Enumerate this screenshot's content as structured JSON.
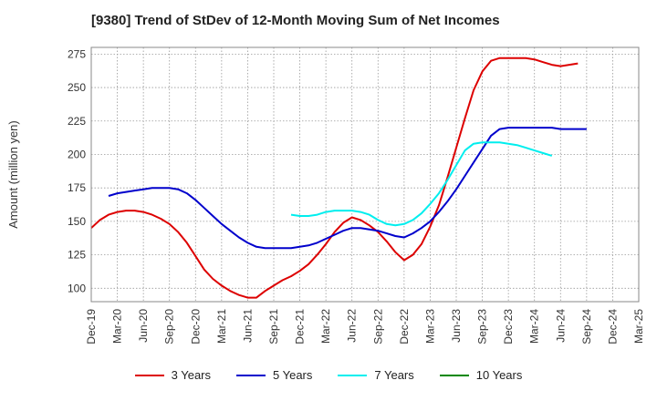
{
  "title": "[9380]  Trend of StDev of 12-Month Moving Sum of Net Incomes",
  "chart_data": {
    "type": "line",
    "title": "[9380]  Trend of StDev of 12-Month Moving Sum of Net Incomes",
    "xlabel": "",
    "ylabel": "Amount (million yen)",
    "x_tick_labels": [
      "Dec-19",
      "Mar-20",
      "Jun-20",
      "Sep-20",
      "Dec-20",
      "Mar-21",
      "Jun-21",
      "Sep-21",
      "Dec-21",
      "Mar-22",
      "Jun-22",
      "Sep-22",
      "Dec-22",
      "Mar-23",
      "Jun-23",
      "Sep-23",
      "Dec-23",
      "Mar-24",
      "Jun-24",
      "Sep-24",
      "Dec-24",
      "Mar-25"
    ],
    "y_ticks": [
      100,
      125,
      150,
      175,
      200,
      225,
      250,
      275
    ],
    "ylim": [
      90,
      280
    ],
    "grid": true,
    "legend_position": "bottom",
    "series": [
      {
        "name": "3 Years",
        "color": "#dd0000",
        "start_index": 0,
        "values": [
          145,
          151,
          155,
          157,
          158,
          158,
          157,
          155,
          152,
          148,
          142,
          134,
          124,
          114,
          107,
          102,
          98,
          95,
          93,
          93,
          98,
          102,
          106,
          109,
          113,
          118,
          125,
          133,
          142,
          149,
          153,
          151,
          147,
          142,
          135,
          127,
          121,
          125,
          133,
          146,
          162,
          183,
          205,
          227,
          248,
          262,
          270,
          272,
          272,
          272,
          272,
          271,
          269,
          267,
          266,
          267,
          268
        ]
      },
      {
        "name": "5 Years",
        "color": "#0000cc",
        "start_index": 2,
        "values": [
          169,
          171,
          172,
          173,
          174,
          175,
          175,
          175,
          174,
          171,
          166,
          160,
          154,
          148,
          143,
          138,
          134,
          131,
          130,
          130,
          130,
          130,
          131,
          132,
          134,
          137,
          140,
          143,
          145,
          145,
          144,
          143,
          141,
          139,
          138,
          141,
          145,
          150,
          157,
          165,
          174,
          184,
          194,
          204,
          214,
          219,
          220,
          220,
          220,
          220,
          220,
          220,
          219,
          219,
          219,
          219
        ]
      },
      {
        "name": "7 Years",
        "color": "#00eeee",
        "start_index": 23,
        "values": [
          155,
          154,
          154,
          155,
          157,
          158,
          158,
          158,
          157,
          155,
          151,
          148,
          147,
          148,
          151,
          156,
          163,
          171,
          181,
          192,
          203,
          208,
          209,
          209,
          209,
          208,
          207,
          205,
          203,
          201,
          199
        ]
      },
      {
        "name": "10 Years",
        "color": "#008800",
        "start_index": 0,
        "values": []
      }
    ]
  }
}
